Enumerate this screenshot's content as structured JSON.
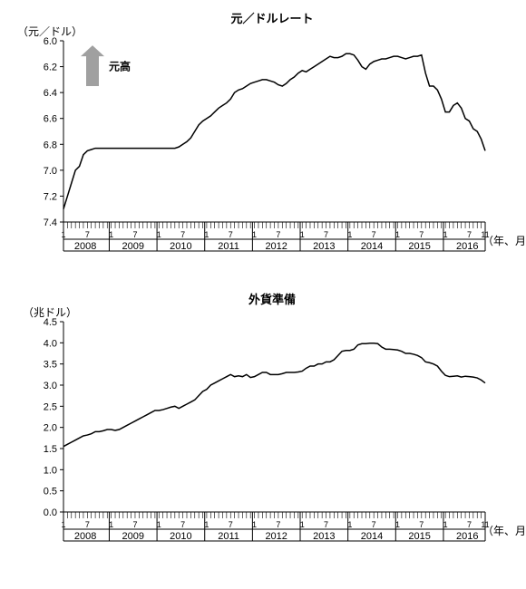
{
  "chart1": {
    "type": "line",
    "title": "元／ドルレート",
    "title_fontsize": 13,
    "ylabel": "（元／ドル）",
    "xlabel": "（年、月）",
    "label_fontsize": 12,
    "annotation": "元高",
    "annotation_fontsize": 12,
    "arrow_color": "#a0a0a0",
    "ylim": [
      7.4,
      6.0
    ],
    "yticks": [
      6.0,
      6.2,
      6.4,
      6.6,
      6.8,
      7.0,
      7.2,
      7.4
    ],
    "years": [
      2008,
      2009,
      2010,
      2011,
      2012,
      2013,
      2014,
      2015,
      2016
    ],
    "x_sub_ticks": [
      "1",
      "7",
      "1",
      "7",
      "1",
      "7",
      "1",
      "7",
      "1",
      "7",
      "1",
      "7",
      "1",
      "7",
      "1",
      "7",
      "1",
      "7",
      "11"
    ],
    "line_color": "#000000",
    "line_width": 1.5,
    "axis_color": "#000000",
    "background_color": "#ffffff",
    "values": [
      7.3,
      7.2,
      7.1,
      7.0,
      6.97,
      6.88,
      6.85,
      6.84,
      6.83,
      6.83,
      6.83,
      6.83,
      6.83,
      6.83,
      6.83,
      6.83,
      6.83,
      6.83,
      6.83,
      6.83,
      6.83,
      6.83,
      6.83,
      6.83,
      6.83,
      6.83,
      6.83,
      6.83,
      6.83,
      6.82,
      6.8,
      6.78,
      6.75,
      6.7,
      6.65,
      6.62,
      6.6,
      6.58,
      6.55,
      6.52,
      6.5,
      6.48,
      6.45,
      6.4,
      6.38,
      6.37,
      6.35,
      6.33,
      6.32,
      6.31,
      6.3,
      6.3,
      6.31,
      6.32,
      6.34,
      6.35,
      6.33,
      6.3,
      6.28,
      6.25,
      6.23,
      6.24,
      6.22,
      6.2,
      6.18,
      6.16,
      6.14,
      6.12,
      6.13,
      6.13,
      6.12,
      6.1,
      6.1,
      6.11,
      6.15,
      6.2,
      6.22,
      6.18,
      6.16,
      6.15,
      6.14,
      6.14,
      6.13,
      6.12,
      6.12,
      6.13,
      6.14,
      6.13,
      6.12,
      6.12,
      6.11,
      6.25,
      6.35,
      6.35,
      6.38,
      6.45,
      6.55,
      6.55,
      6.5,
      6.48,
      6.52,
      6.6,
      6.62,
      6.68,
      6.7,
      6.76,
      6.85
    ]
  },
  "chart2": {
    "type": "line",
    "title": "外貨準備",
    "title_fontsize": 13,
    "ylabel": "（兆ドル）",
    "xlabel": "（年、月）",
    "label_fontsize": 12,
    "ylim": [
      0.0,
      4.5
    ],
    "yticks": [
      0.0,
      0.5,
      1.0,
      1.5,
      2.0,
      2.5,
      3.0,
      3.5,
      4.0,
      4.5
    ],
    "years": [
      2008,
      2009,
      2010,
      2011,
      2012,
      2013,
      2014,
      2015,
      2016
    ],
    "x_sub_ticks": [
      "1",
      "7",
      "1",
      "7",
      "1",
      "7",
      "1",
      "7",
      "1",
      "7",
      "1",
      "7",
      "1",
      "7",
      "1",
      "7",
      "1",
      "7",
      "11"
    ],
    "line_color": "#000000",
    "line_width": 1.5,
    "axis_color": "#000000",
    "background_color": "#ffffff",
    "values": [
      1.55,
      1.6,
      1.65,
      1.7,
      1.75,
      1.8,
      1.82,
      1.85,
      1.9,
      1.9,
      1.92,
      1.95,
      1.95,
      1.93,
      1.95,
      2.0,
      2.05,
      2.1,
      2.15,
      2.2,
      2.25,
      2.3,
      2.35,
      2.4,
      2.4,
      2.42,
      2.45,
      2.48,
      2.5,
      2.45,
      2.5,
      2.55,
      2.6,
      2.65,
      2.75,
      2.85,
      2.9,
      3.0,
      3.05,
      3.1,
      3.15,
      3.2,
      3.25,
      3.2,
      3.22,
      3.2,
      3.25,
      3.18,
      3.2,
      3.25,
      3.3,
      3.3,
      3.25,
      3.25,
      3.25,
      3.27,
      3.3,
      3.3,
      3.3,
      3.31,
      3.33,
      3.4,
      3.45,
      3.45,
      3.5,
      3.5,
      3.55,
      3.55,
      3.6,
      3.7,
      3.8,
      3.82,
      3.82,
      3.85,
      3.95,
      3.98,
      3.98,
      3.99,
      3.99,
      3.98,
      3.9,
      3.85,
      3.85,
      3.84,
      3.83,
      3.8,
      3.75,
      3.75,
      3.73,
      3.7,
      3.65,
      3.55,
      3.53,
      3.5,
      3.45,
      3.33,
      3.23,
      3.2,
      3.21,
      3.22,
      3.19,
      3.21,
      3.2,
      3.19,
      3.17,
      3.12,
      3.05
    ]
  }
}
